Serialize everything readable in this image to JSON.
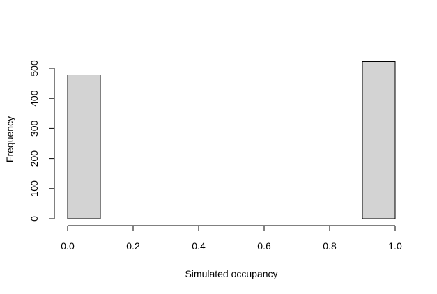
{
  "chart_data": {
    "type": "bar",
    "title": "",
    "xlabel": "Simulated occupancy",
    "ylabel": "Frequency",
    "bins": [
      {
        "x0": 0.0,
        "x1": 0.1,
        "count": 478
      },
      {
        "x0": 0.1,
        "x1": 0.2,
        "count": 0
      },
      {
        "x0": 0.2,
        "x1": 0.3,
        "count": 0
      },
      {
        "x0": 0.3,
        "x1": 0.4,
        "count": 0
      },
      {
        "x0": 0.4,
        "x1": 0.5,
        "count": 0
      },
      {
        "x0": 0.5,
        "x1": 0.6,
        "count": 0
      },
      {
        "x0": 0.6,
        "x1": 0.7,
        "count": 0
      },
      {
        "x0": 0.7,
        "x1": 0.8,
        "count": 0
      },
      {
        "x0": 0.8,
        "x1": 0.9,
        "count": 0
      },
      {
        "x0": 0.9,
        "x1": 1.0,
        "count": 522
      }
    ],
    "xlim": [
      0,
      1
    ],
    "ylim": [
      0,
      500
    ],
    "x_ticks": [
      "0.0",
      "0.2",
      "0.4",
      "0.6",
      "0.8",
      "1.0"
    ],
    "y_ticks": [
      "0",
      "100",
      "200",
      "300",
      "400",
      "500"
    ],
    "bar_fill": "#d3d3d3",
    "bar_stroke": "#000000",
    "grid": false,
    "legend": "none"
  }
}
